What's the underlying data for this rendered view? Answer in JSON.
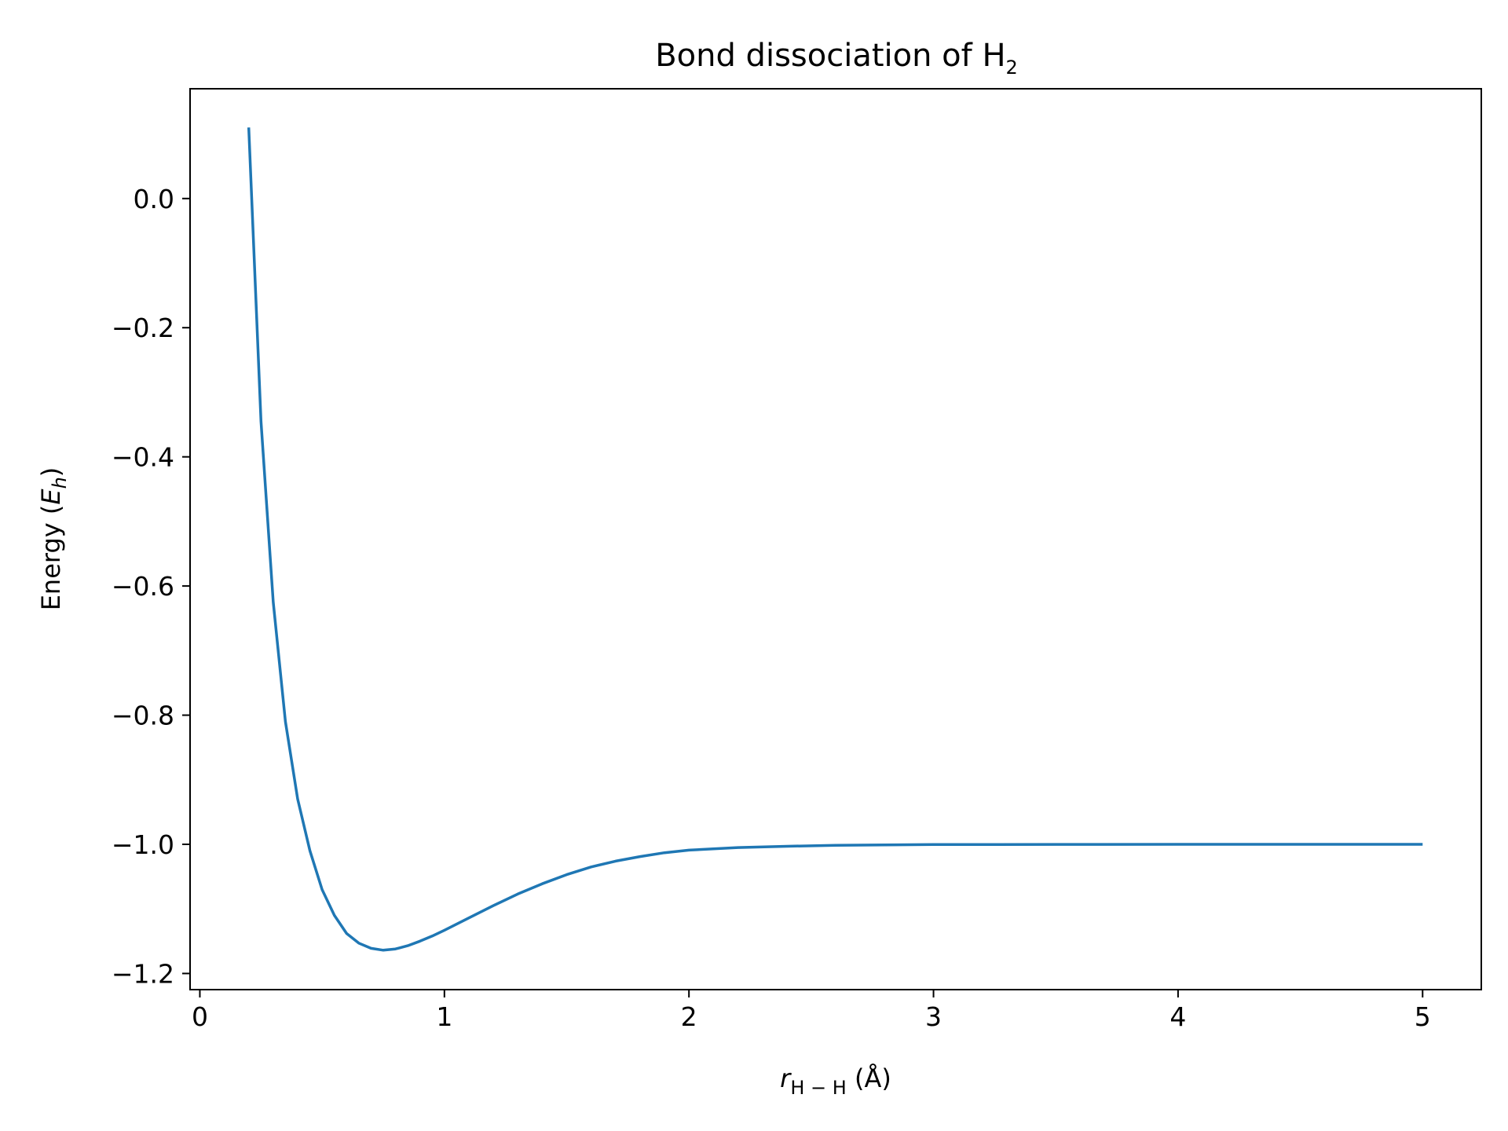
{
  "chart_data": {
    "type": "line",
    "title": {
      "main": "Bond dissociation of H",
      "subscript": "2"
    },
    "xlabel": {
      "symbol": "r",
      "subscript": "H − H",
      "unit": " (Å)"
    },
    "ylabel": {
      "prefix": "Energy (",
      "symbol": "E",
      "subscript": "h",
      "suffix": ")"
    },
    "xlim": [
      -0.04,
      5.24
    ],
    "ylim": [
      -1.225,
      0.17
    ],
    "x_ticks": [
      0,
      1,
      2,
      3,
      4,
      5
    ],
    "x_tick_labels": [
      "0",
      "1",
      "2",
      "3",
      "4",
      "5"
    ],
    "y_ticks": [
      0.0,
      -0.2,
      -0.4,
      -0.6,
      -0.8,
      -1.0,
      -1.2
    ],
    "y_tick_labels": [
      "0.0",
      "−0.2",
      "−0.4",
      "−0.6",
      "−0.8",
      "−1.0",
      "−1.2"
    ],
    "grid": false,
    "series": [
      {
        "color": "#1f77b4",
        "x": [
          0.2,
          0.25,
          0.3,
          0.35,
          0.4,
          0.45,
          0.5,
          0.55,
          0.6,
          0.65,
          0.7,
          0.75,
          0.8,
          0.85,
          0.9,
          0.95,
          1.0,
          1.1,
          1.2,
          1.3,
          1.4,
          1.5,
          1.6,
          1.7,
          1.8,
          1.9,
          2.0,
          2.2,
          2.4,
          2.6,
          2.8,
          3.0,
          3.5,
          4.0,
          4.5,
          5.0
        ],
        "y": [
          0.11,
          -0.345,
          -0.625,
          -0.81,
          -0.93,
          -1.01,
          -1.07,
          -1.11,
          -1.138,
          -1.153,
          -1.161,
          -1.164,
          -1.162,
          -1.157,
          -1.15,
          -1.142,
          -1.133,
          -1.114,
          -1.095,
          -1.077,
          -1.061,
          -1.047,
          -1.035,
          -1.026,
          -1.019,
          -1.013,
          -1.009,
          -1.005,
          -1.003,
          -1.0015,
          -1.0008,
          -1.0004,
          -1.0001,
          -1.0,
          -1.0,
          -1.0
        ]
      }
    ]
  }
}
